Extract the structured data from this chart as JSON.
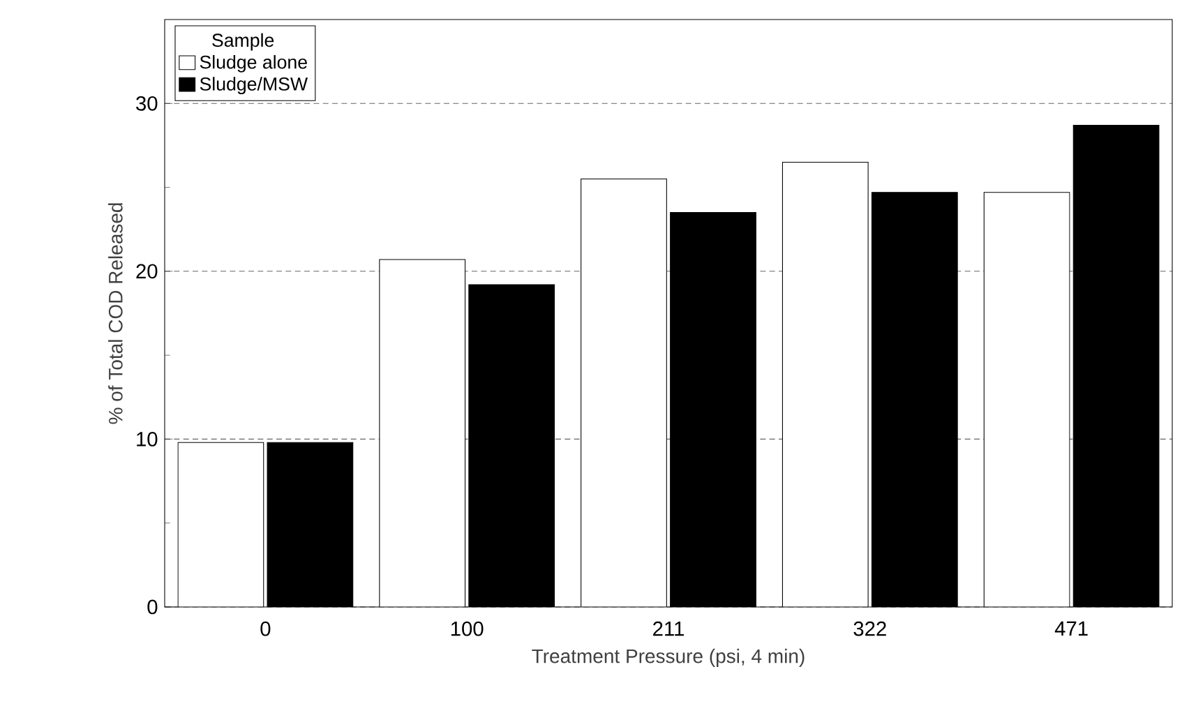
{
  "chart_data": {
    "type": "bar",
    "xlabel": "Treatment Pressure (psi, 4 min)",
    "ylabel": "% of Total COD Released",
    "legend_title": "Sample",
    "categories": [
      "0",
      "100",
      "211",
      "322",
      "471"
    ],
    "series": [
      {
        "name": "Sludge alone",
        "color": "#ffffff",
        "values": [
          9.8,
          20.7,
          25.5,
          26.5,
          24.7
        ]
      },
      {
        "name": "Sludge/MSW",
        "color": "#000000",
        "values": [
          9.8,
          19.2,
          23.5,
          24.7,
          28.7
        ]
      }
    ],
    "ylim": [
      0,
      35
    ],
    "yticks": [
      0,
      10,
      20,
      30
    ],
    "grid": "y",
    "legend": "top left"
  }
}
